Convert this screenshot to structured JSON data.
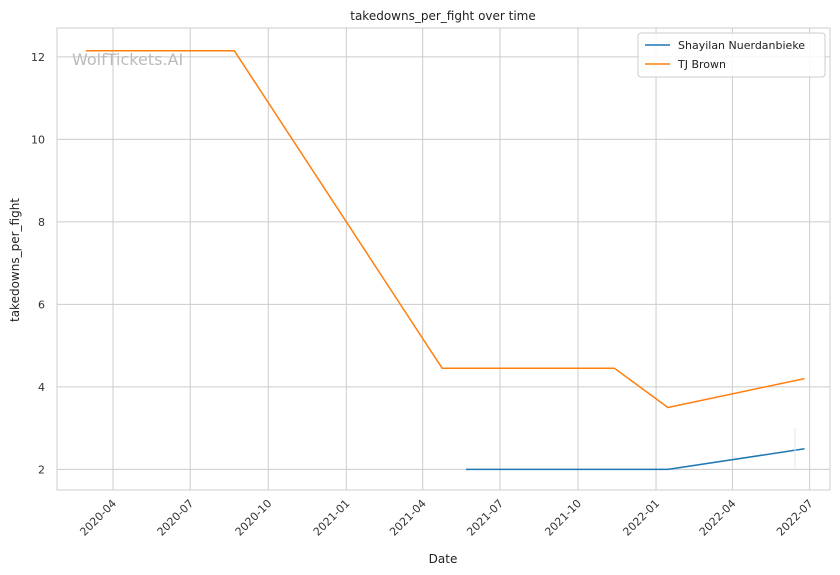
{
  "chart_data": {
    "type": "line",
    "title": "takedowns_per_fight over time",
    "xlabel": "Date",
    "ylabel": "takedowns_per_fight",
    "watermark": "WolfTickets.AI",
    "x_ticks": [
      "2020-04",
      "2020-07",
      "2020-10",
      "2021-01",
      "2021-04",
      "2021-07",
      "2021-10",
      "2022-01",
      "2022-04",
      "2022-07"
    ],
    "y_ticks": [
      2,
      4,
      6,
      8,
      10,
      12
    ],
    "xlim": [
      "2020-01-26",
      "2022-07-25"
    ],
    "ylim": [
      1.5,
      12.7
    ],
    "grid": true,
    "legend_position": "top-right",
    "series": [
      {
        "name": "Shayilan Nuerdanbieke",
        "color": "#1f77b4",
        "points": [
          {
            "x": "2021-05-22",
            "y": 2.0
          },
          {
            "x": "2022-01-15",
            "y": 2.0
          },
          {
            "x": "2022-06-25",
            "y": 2.5
          }
        ]
      },
      {
        "name": "TJ Brown",
        "color": "#ff7f0e",
        "points": [
          {
            "x": "2020-02-29",
            "y": 12.15
          },
          {
            "x": "2020-08-22",
            "y": 12.15
          },
          {
            "x": "2021-04-24",
            "y": 4.45
          },
          {
            "x": "2021-11-13",
            "y": 4.45
          },
          {
            "x": "2022-01-15",
            "y": 3.5
          },
          {
            "x": "2022-06-25",
            "y": 4.2
          }
        ]
      }
    ]
  }
}
